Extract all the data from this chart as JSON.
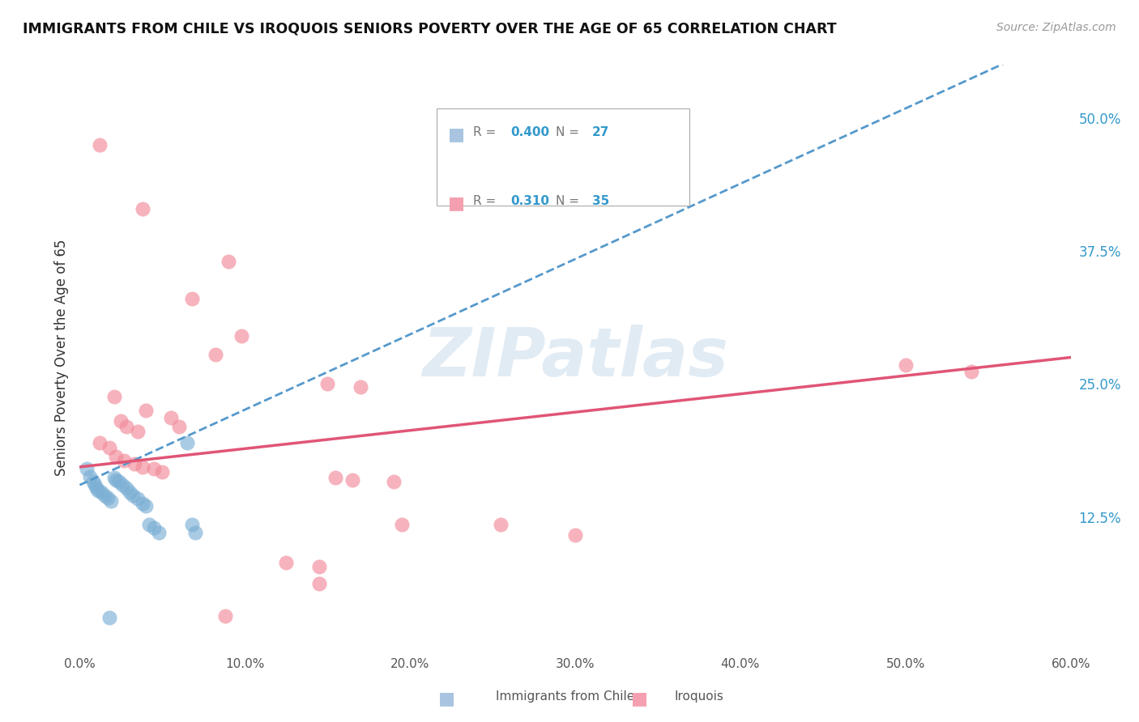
{
  "title": "IMMIGRANTS FROM CHILE VS IROQUOIS SENIORS POVERTY OVER THE AGE OF 65 CORRELATION CHART",
  "source": "Source: ZipAtlas.com",
  "ylabel": "Seniors Poverty Over the Age of 65",
  "xlim": [
    0.0,
    0.6
  ],
  "ylim": [
    0.0,
    0.55
  ],
  "xtick_labels": [
    "0.0%",
    "10.0%",
    "20.0%",
    "30.0%",
    "40.0%",
    "50.0%",
    "60.0%"
  ],
  "xtick_vals": [
    0.0,
    0.1,
    0.2,
    0.3,
    0.4,
    0.5,
    0.6
  ],
  "ytick_labels_right": [
    "12.5%",
    "25.0%",
    "37.5%",
    "50.0%"
  ],
  "ytick_vals_right": [
    0.125,
    0.25,
    0.375,
    0.5
  ],
  "chile_color": "#7bafd4",
  "iroquois_color": "#f28b9a",
  "chile_legend_color": "#a8c4e0",
  "iroquois_legend_color": "#f4a0b0",
  "chile_R": "0.400",
  "chile_N": "27",
  "iroquois_R": "0.310",
  "iroquois_N": "35",
  "chile_line": [
    [
      0.0,
      0.155
    ],
    [
      0.6,
      0.58
    ]
  ],
  "iroquois_line": [
    [
      0.0,
      0.172
    ],
    [
      0.6,
      0.275
    ]
  ],
  "chile_scatter": [
    [
      0.004,
      0.17
    ],
    [
      0.006,
      0.163
    ],
    [
      0.008,
      0.158
    ],
    [
      0.009,
      0.155
    ],
    [
      0.01,
      0.152
    ],
    [
      0.011,
      0.15
    ],
    [
      0.013,
      0.148
    ],
    [
      0.015,
      0.145
    ],
    [
      0.017,
      0.143
    ],
    [
      0.019,
      0.14
    ],
    [
      0.021,
      0.162
    ],
    [
      0.022,
      0.16
    ],
    [
      0.024,
      0.158
    ],
    [
      0.026,
      0.155
    ],
    [
      0.028,
      0.152
    ],
    [
      0.03,
      0.148
    ],
    [
      0.032,
      0.145
    ],
    [
      0.035,
      0.142
    ],
    [
      0.038,
      0.138
    ],
    [
      0.04,
      0.135
    ],
    [
      0.042,
      0.118
    ],
    [
      0.045,
      0.115
    ],
    [
      0.048,
      0.11
    ],
    [
      0.065,
      0.195
    ],
    [
      0.068,
      0.118
    ],
    [
      0.07,
      0.11
    ],
    [
      0.018,
      0.03
    ]
  ],
  "iroquois_scatter": [
    [
      0.012,
      0.475
    ],
    [
      0.038,
      0.415
    ],
    [
      0.09,
      0.365
    ],
    [
      0.068,
      0.33
    ],
    [
      0.15,
      0.25
    ],
    [
      0.17,
      0.247
    ],
    [
      0.098,
      0.295
    ],
    [
      0.082,
      0.278
    ],
    [
      0.021,
      0.238
    ],
    [
      0.025,
      0.215
    ],
    [
      0.028,
      0.21
    ],
    [
      0.035,
      0.205
    ],
    [
      0.04,
      0.225
    ],
    [
      0.055,
      0.218
    ],
    [
      0.06,
      0.21
    ],
    [
      0.012,
      0.195
    ],
    [
      0.018,
      0.19
    ],
    [
      0.155,
      0.162
    ],
    [
      0.165,
      0.16
    ],
    [
      0.19,
      0.158
    ],
    [
      0.022,
      0.182
    ],
    [
      0.027,
      0.178
    ],
    [
      0.033,
      0.175
    ],
    [
      0.038,
      0.172
    ],
    [
      0.045,
      0.17
    ],
    [
      0.05,
      0.167
    ],
    [
      0.5,
      0.268
    ],
    [
      0.54,
      0.262
    ],
    [
      0.195,
      0.118
    ],
    [
      0.255,
      0.118
    ],
    [
      0.3,
      0.108
    ],
    [
      0.125,
      0.082
    ],
    [
      0.145,
      0.078
    ],
    [
      0.088,
      0.032
    ],
    [
      0.145,
      0.062
    ]
  ],
  "watermark_text": "ZIPatlas",
  "background_color": "#ffffff",
  "grid_color": "#cccccc"
}
